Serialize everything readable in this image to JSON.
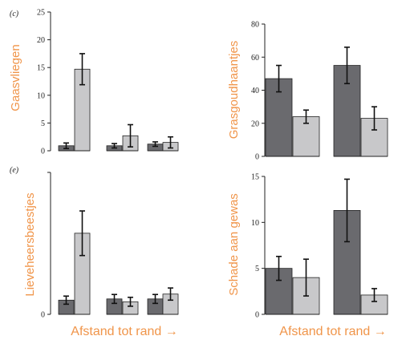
{
  "colors": {
    "dark_bar": "#6a6a6e",
    "light_bar": "#c8c8ca",
    "label_orange": "#f0954a",
    "axis": "#222222"
  },
  "chart_data": [
    {
      "type": "bar",
      "panel_letter": "(c)",
      "ylabel": "Gaasvliegen",
      "xlabel": "",
      "ylim": [
        0,
        25
      ],
      "yticks": [
        "0",
        "5",
        "10",
        "15",
        "20",
        "25"
      ],
      "grid": false,
      "groups": [
        {
          "values": [
            0.9,
            14.7
          ],
          "errors": [
            0.5,
            2.8
          ]
        },
        {
          "values": [
            0.9,
            2.7
          ],
          "errors": [
            0.4,
            2.0
          ]
        },
        {
          "values": [
            1.2,
            1.5
          ],
          "errors": [
            0.4,
            1.0
          ]
        }
      ]
    },
    {
      "type": "bar",
      "panel_letter": "",
      "ylabel": "Grasgoudhaantjes",
      "xlabel": "",
      "ylim": [
        0,
        80
      ],
      "yticks": [
        "0",
        "20",
        "40",
        "60",
        "80"
      ],
      "grid": false,
      "groups": [
        {
          "values": [
            47,
            24
          ],
          "errors": [
            8,
            4
          ]
        },
        {
          "values": [
            55,
            23
          ],
          "errors": [
            11,
            7
          ]
        }
      ]
    },
    {
      "type": "bar",
      "panel_letter": "(e)",
      "ylabel": "Lieveheersbeestjes",
      "xlabel": "Afstand tot rand →",
      "ylim": [
        0,
        35
      ],
      "yticks": [
        "0"
      ],
      "grid": false,
      "groups": [
        {
          "values": [
            3.5,
            20
          ],
          "errors": [
            1.0,
            5.5
          ]
        },
        {
          "values": [
            3.8,
            3.1
          ],
          "errors": [
            1.1,
            1.1
          ]
        },
        {
          "values": [
            3.8,
            5.0
          ],
          "errors": [
            1.1,
            1.5
          ]
        }
      ]
    },
    {
      "type": "bar",
      "panel_letter": "",
      "ylabel": "Schade aan gewas",
      "xlabel": "Afstand tot rand →",
      "ylim": [
        0,
        15
      ],
      "yticks": [
        "0",
        "5",
        "10",
        "15"
      ],
      "grid": false,
      "groups": [
        {
          "values": [
            5.0,
            4.0
          ],
          "errors": [
            1.3,
            2.0
          ]
        },
        {
          "values": [
            11.3,
            2.1
          ],
          "errors": [
            3.4,
            0.7
          ]
        }
      ]
    }
  ]
}
